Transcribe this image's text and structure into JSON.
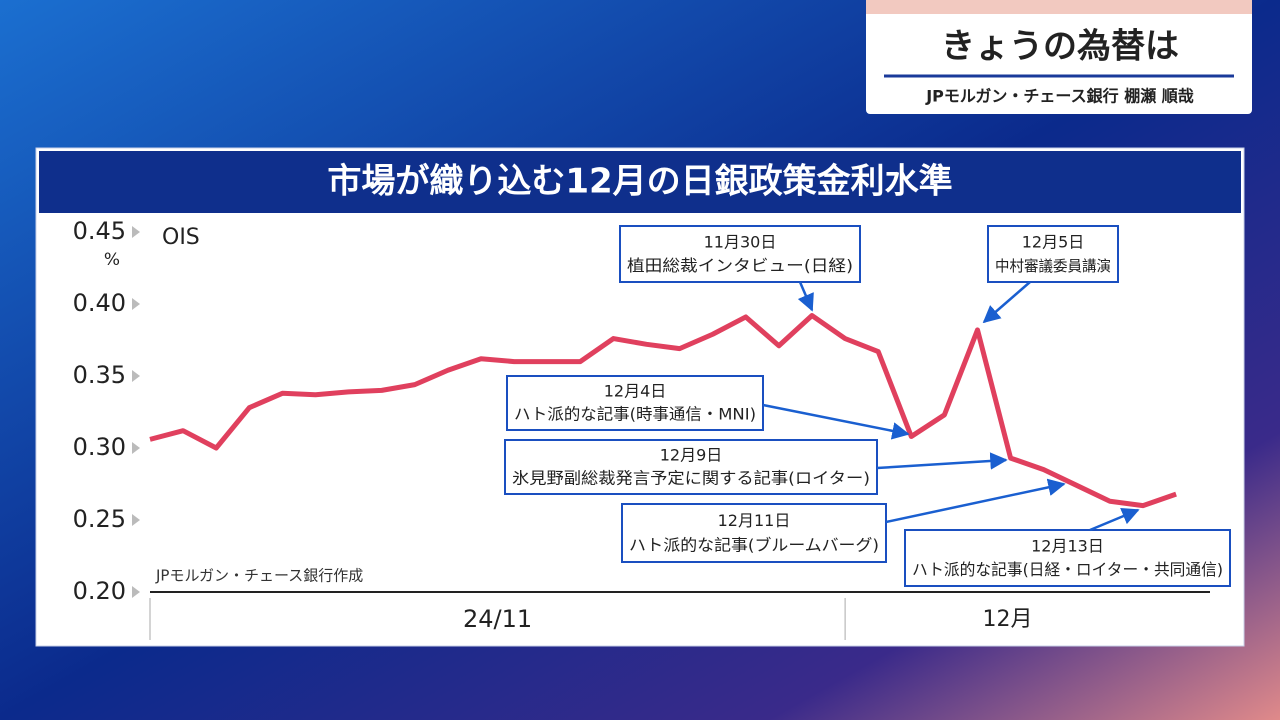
{
  "header": {
    "title": "きょうの為替は",
    "subtitle": "JPモルガン・チェース銀行 棚瀬 順哉"
  },
  "chart_data": {
    "type": "line",
    "title": "市場が織り込む12月の日銀政策金利水準",
    "y_unit": "%",
    "source": "JPモルガン・チェース銀行作成",
    "x_groups": [
      "24/11",
      "12月"
    ],
    "categories": [
      null,
      null,
      null,
      null,
      null,
      null,
      null,
      null,
      null,
      null,
      null,
      null,
      null,
      null,
      null,
      null,
      null,
      null,
      null,
      null,
      null,
      null,
      null,
      null,
      null,
      null,
      null,
      null,
      null,
      null,
      null,
      null
    ],
    "series": [
      {
        "name": "OIS",
        "color": "#e0405e",
        "values": [
          0.306,
          0.312,
          0.3,
          0.328,
          0.338,
          0.337,
          0.339,
          0.34,
          0.344,
          0.354,
          0.362,
          0.36,
          0.36,
          0.36,
          0.376,
          0.372,
          0.369,
          0.379,
          0.391,
          0.371,
          0.392,
          0.376,
          0.367,
          0.308,
          0.323,
          0.382,
          0.293,
          0.285,
          0.274,
          0.263,
          0.26,
          0.268
        ]
      }
    ],
    "ylim": [
      0.2,
      0.45
    ],
    "yticks": [
      {
        "value": 0.2,
        "label": "0.20"
      },
      {
        "value": 0.25,
        "label": "0.25"
      },
      {
        "value": 0.3,
        "label": "0.30"
      },
      {
        "value": 0.35,
        "label": "0.35"
      },
      {
        "value": 0.4,
        "label": "0.40"
      },
      {
        "value": 0.45,
        "label": "0.45"
      }
    ],
    "annotations": [
      {
        "date": "11月30日",
        "text": "植田総裁インタビュー(日経)"
      },
      {
        "date": "12月5日",
        "text": "中村審議委員講演"
      },
      {
        "date": "12月4日",
        "text": "ハト派的な記事(時事通信・MNI)"
      },
      {
        "date": "12月9日",
        "text": "氷見野副総裁発言予定に関する記事(ロイター)"
      },
      {
        "date": "12月11日",
        "text": "ハト派的な記事(ブルームバーグ)"
      },
      {
        "date": "12月13日",
        "text": "ハト派的な記事(日経・ロイター・共同通信)"
      }
    ]
  }
}
